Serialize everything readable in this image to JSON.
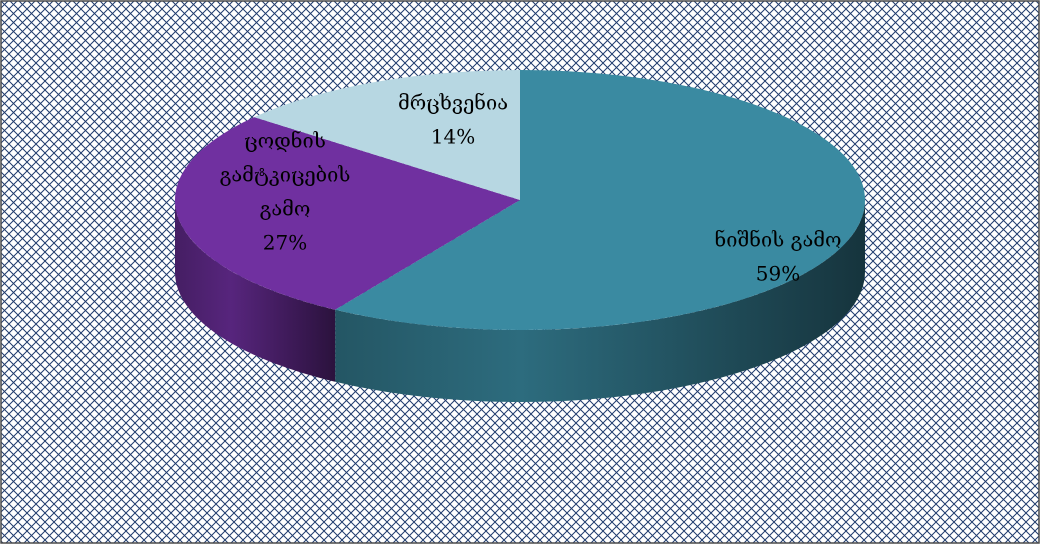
{
  "chart_data": {
    "type": "pie",
    "style": "3d",
    "title": "",
    "background": "crosshatch",
    "slices": [
      {
        "label_lines": [
          "ნიშნის გამო"
        ],
        "value": 59,
        "value_label": "59%",
        "color": "#3a8aa1"
      },
      {
        "label_lines": [
          "ცოდნის",
          "გამტკიცების",
          "გამო"
        ],
        "value": 27,
        "value_label": "27%",
        "color": "#7030a0"
      },
      {
        "label_lines": [
          "მრცხვენია"
        ],
        "value": 14,
        "value_label": "14%",
        "color": "#b7d7e2"
      }
    ]
  }
}
